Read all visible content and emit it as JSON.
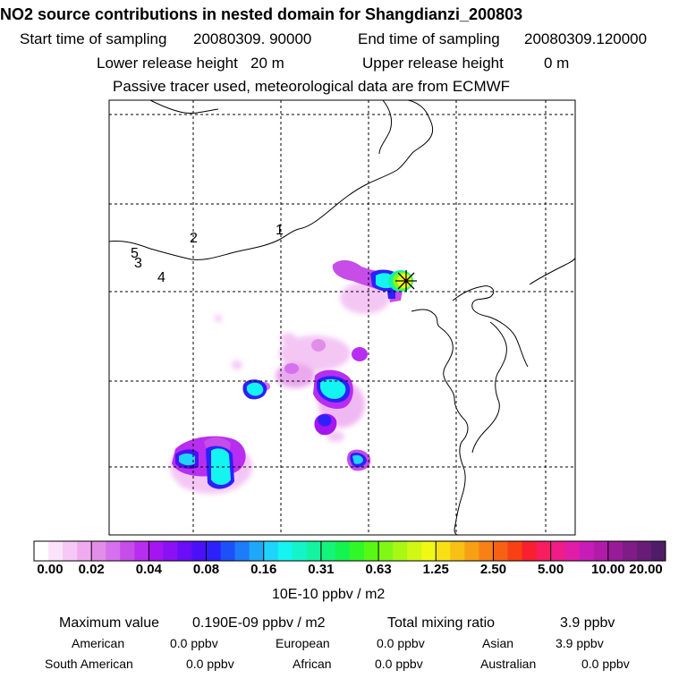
{
  "title": "NO2 source contributions in nested domain for Shangdianzi_200803",
  "header": {
    "start_label": "Start time of sampling",
    "start_value": "20080309. 90000",
    "end_label": "End time of sampling",
    "end_value": "20080309.120000",
    "lower_label": "Lower release height",
    "lower_value": "20 m",
    "upper_label": "Upper release height",
    "upper_value": "0 m",
    "note": "Passive tracer used, meteorological data are from ECMWF"
  },
  "map": {
    "region_labels": [
      "1",
      "2",
      "3",
      "4",
      "5"
    ],
    "receptor_marker": "receptor-star"
  },
  "colorbar": {
    "ticks": [
      "0.00",
      "0.02",
      "0.04",
      "0.08",
      "0.16",
      "0.31",
      "0.63",
      "1.25",
      "2.50",
      "5.00",
      "10.00",
      "20.00"
    ],
    "colors": [
      "#ffffff",
      "#fbe4fb",
      "#f6c8f6",
      "#f0abf0",
      "#e28ee8",
      "#d570ee",
      "#c64de8",
      "#b82ef0",
      "#a415f2",
      "#8a10f6",
      "#6a0ef8",
      "#4c10f8",
      "#2e20fa",
      "#1e50fa",
      "#1e7cfa",
      "#1ea8fa",
      "#1ed4fa",
      "#14f4f0",
      "#14f4c8",
      "#14f4a0",
      "#14f478",
      "#14f450",
      "#30f828",
      "#58f814",
      "#80f814",
      "#a8f814",
      "#d0f814",
      "#f0f814",
      "#f8e014",
      "#f8c014",
      "#f8a014",
      "#f88014",
      "#f86014",
      "#f84014",
      "#f82030",
      "#f81c60",
      "#f01c88",
      "#e01ca8",
      "#c81cb8",
      "#b01ca8",
      "#981c98",
      "#801c88",
      "#681c78",
      "#501c68"
    ],
    "unit": "10E-10 ppbv / m2"
  },
  "footer": {
    "max_label": "Maximum value",
    "max_value": "0.190E-09 ppbv / m2",
    "total_label": "Total mixing ratio",
    "total_value": "3.9 ppbv",
    "sources": [
      {
        "name": "American",
        "value": "0.0 ppbv"
      },
      {
        "name": "European",
        "value": "0.0 ppbv"
      },
      {
        "name": "Asian",
        "value": "3.9 ppbv"
      },
      {
        "name": "South American",
        "value": "0.0 ppbv"
      },
      {
        "name": "African",
        "value": "0.0 ppbv"
      },
      {
        "name": "Australian",
        "value": "0.0 ppbv"
      }
    ]
  }
}
